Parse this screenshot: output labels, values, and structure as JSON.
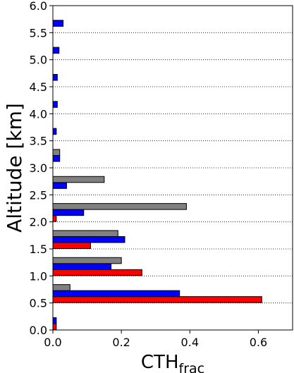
{
  "chart_data": {
    "type": "bar",
    "orientation": "horizontal",
    "xlabel": "CTH",
    "xlabel_subscript": "frac",
    "ylabel": "Altitude [km]",
    "xlim": [
      0,
      0.7
    ],
    "ylim": [
      0,
      6.0
    ],
    "x_ticks": [
      "0.0",
      "0.2",
      "0.4",
      "0.6"
    ],
    "y_ticks": [
      "0.0",
      "0.5",
      "1.0",
      "1.5",
      "2.0",
      "2.5",
      "3.0",
      "3.5",
      "4.0",
      "4.5",
      "5.0",
      "5.5",
      "6.0"
    ],
    "grid": "horizontal dotted",
    "bin_lower_edges_km": [
      0.0,
      0.5,
      1.0,
      1.5,
      2.0,
      2.5,
      3.0,
      3.5,
      4.0,
      4.5,
      5.0,
      5.5
    ],
    "series": [
      {
        "color": "#ff0000",
        "values": [
          0.01,
          0.61,
          0.26,
          0.11,
          0.01,
          0,
          0,
          0,
          0,
          0,
          0,
          0
        ]
      },
      {
        "color": "#0000ff",
        "values": [
          0.01,
          0.37,
          0.17,
          0.21,
          0.09,
          0.04,
          0.02,
          0.01,
          0.013,
          0.013,
          0.018,
          0.03
        ]
      },
      {
        "color": "#808080",
        "values": [
          0,
          0.05,
          0.2,
          0.19,
          0.39,
          0.15,
          0.02,
          0,
          0,
          0,
          0,
          0
        ]
      }
    ]
  }
}
